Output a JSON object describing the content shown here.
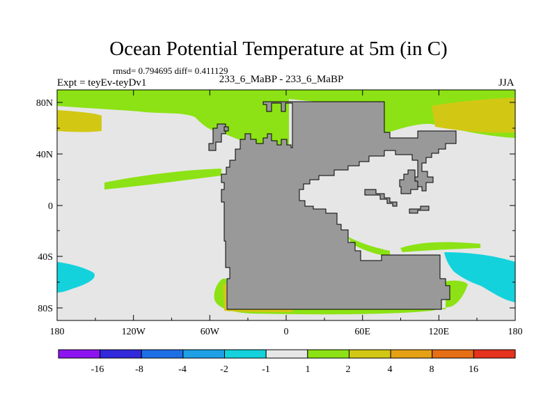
{
  "header": {
    "title": "Ocean Potential Temperature at 5m (in C)",
    "stats": "rmsd= 0.794695 diff= 0.411129",
    "expt": "Expt = teyEv-teyDv1",
    "subtitle": "233_6_MaBP - 233_6_MaBP",
    "season": "JJA"
  },
  "axes": {
    "y_ticks": [
      "80N",
      "40N",
      "0",
      "40S",
      "80S"
    ],
    "x_ticks": [
      "180",
      "120W",
      "60W",
      "0",
      "60E",
      "120E",
      "180"
    ]
  },
  "colorbar": {
    "labels": [
      "-16",
      "-8",
      "-4",
      "-2",
      "-1",
      "1",
      "2",
      "4",
      "8",
      "16"
    ],
    "colors": [
      "#8c14f0",
      "#3228dc",
      "#1e6ee6",
      "#1ea0e6",
      "#14d2dc",
      "#e6e6e6",
      "#8ce214",
      "#d2c814",
      "#e6a014",
      "#e66e14",
      "#e6321e"
    ]
  },
  "map_colors": {
    "land": "#999999",
    "near_zero": "#e6e6e6",
    "warm_1_2": "#8ce214",
    "warm_2_4": "#d2c814",
    "cool_1_2": "#14d2dc"
  }
}
